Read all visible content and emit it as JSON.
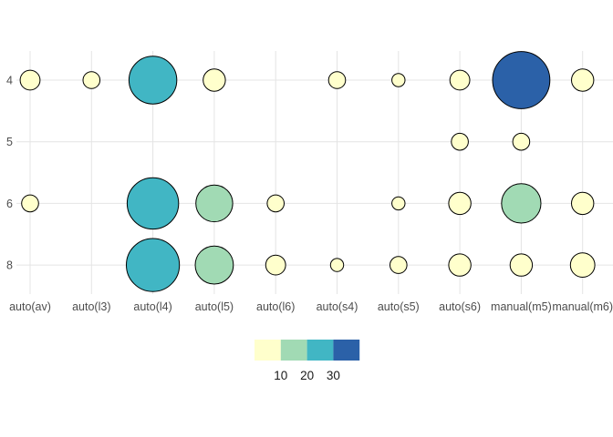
{
  "chart_data": {
    "type": "scatter",
    "subtype": "bubble-count-plot",
    "title": "",
    "xlabel": "",
    "ylabel": "",
    "grid": "on",
    "legend_position": "bottom-center",
    "x_categories": [
      "auto(av)",
      "auto(l3)",
      "auto(l4)",
      "auto(l5)",
      "auto(l6)",
      "auto(s4)",
      "auto(s5)",
      "auto(s6)",
      "manual(m5)",
      "manual(m6)"
    ],
    "y_categories": [
      "4",
      "5",
      "6",
      "8"
    ],
    "points": [
      {
        "x": "auto(av)",
        "y": "4",
        "n": 3
      },
      {
        "x": "auto(l3)",
        "y": "4",
        "n": 2
      },
      {
        "x": "auto(l4)",
        "y": "4",
        "n": 23
      },
      {
        "x": "auto(l5)",
        "y": "4",
        "n": 4
      },
      {
        "x": "auto(s4)",
        "y": "4",
        "n": 2
      },
      {
        "x": "auto(s5)",
        "y": "4",
        "n": 1
      },
      {
        "x": "auto(s6)",
        "y": "4",
        "n": 3
      },
      {
        "x": "manual(m5)",
        "y": "4",
        "n": 34
      },
      {
        "x": "manual(m6)",
        "y": "4",
        "n": 4
      },
      {
        "x": "auto(s6)",
        "y": "5",
        "n": 2
      },
      {
        "x": "manual(m5)",
        "y": "5",
        "n": 2
      },
      {
        "x": "auto(av)",
        "y": "6",
        "n": 2
      },
      {
        "x": "auto(l4)",
        "y": "6",
        "n": 27
      },
      {
        "x": "auto(l5)",
        "y": "6",
        "n": 13
      },
      {
        "x": "auto(l6)",
        "y": "6",
        "n": 2
      },
      {
        "x": "auto(s5)",
        "y": "6",
        "n": 1
      },
      {
        "x": "auto(s6)",
        "y": "6",
        "n": 4
      },
      {
        "x": "manual(m5)",
        "y": "6",
        "n": 15
      },
      {
        "x": "manual(m6)",
        "y": "6",
        "n": 4
      },
      {
        "x": "auto(l4)",
        "y": "8",
        "n": 29
      },
      {
        "x": "auto(l5)",
        "y": "8",
        "n": 14
      },
      {
        "x": "auto(l6)",
        "y": "8",
        "n": 3
      },
      {
        "x": "auto(s4)",
        "y": "8",
        "n": 1
      },
      {
        "x": "auto(s5)",
        "y": "8",
        "n": 2
      },
      {
        "x": "auto(s6)",
        "y": "8",
        "n": 4
      },
      {
        "x": "manual(m5)",
        "y": "8",
        "n": 4
      },
      {
        "x": "manual(m6)",
        "y": "8",
        "n": 5
      }
    ],
    "legend": {
      "tick_labels": [
        "10",
        "20",
        "30"
      ],
      "thresholds": [
        10,
        20,
        30
      ],
      "colors": [
        "#FFFFCC",
        "#A1DAB4",
        "#41B6C4",
        "#2B61A8"
      ]
    },
    "style": {
      "point_stroke": "#000000",
      "grid_color": "#E4E4E4",
      "axis_text_color": "#4D4D4D",
      "legend_text_color": "#1A1A1A",
      "background": "#FFFFFF"
    }
  }
}
